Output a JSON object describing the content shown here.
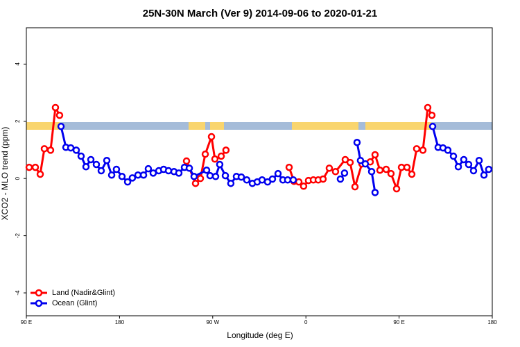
{
  "chart_data": {
    "type": "line",
    "title": "25N-30N March (Ver 9)   2014-09-06 to 2020-01-21",
    "x_label": "Longitude (deg E)",
    "y_label": "XCO2 - MLO trend (ppm)",
    "xlim": [
      90,
      540
    ],
    "xticks": [
      {
        "value": 90,
        "label": "90 E"
      },
      180,
      {
        "value": 270,
        "label": "90 W"
      },
      {
        "value": 360,
        "label": "0"
      },
      {
        "value": 450,
        "label": "90 E"
      },
      180
    ],
    "ylim": [
      -4.8,
      5.27
    ],
    "yticks": [
      -4,
      -2,
      0,
      2,
      4
    ],
    "legend": "bottom-left",
    "series": [
      {
        "name": "Land (Nadir&Glint)",
        "color": "#ff0000",
        "x": [
          92.7,
          98.7,
          103.4,
          107.4,
          113.4,
          118.1,
          122.1,
          null,
          244.7,
          253.4,
          258.1,
          262.8,
          268.8,
          272.1,
          278.2,
          282.8,
          null,
          343.8,
          348.5,
          353.2,
          357.8,
          362.5,
          367.2,
          371.9,
          376.6,
          382.6,
          388.6,
          398.0,
          402.7,
          407.4,
          414.1,
          422.1,
          426.8,
          431.5,
          437.5,
          442.2,
          447.6,
          452.3,
          457.6,
          462.3,
          467.0,
          473.0,
          477.7,
          481.7
        ],
        "values": [
          0.39,
          0.39,
          0.15,
          1.04,
          0.99,
          2.48,
          2.21,
          null,
          0.61,
          -0.17,
          0,
          0.85,
          1.46,
          0.68,
          0.78,
          0.99,
          null,
          0.39,
          -0.1,
          -0.12,
          -0.27,
          -0.07,
          -0.05,
          -0.05,
          -0.02,
          0.36,
          0.24,
          0.66,
          0.56,
          -0.29,
          0.51,
          0.58,
          0.83,
          0.29,
          0.32,
          0.17,
          -0.36,
          0.39,
          0.39,
          0.15,
          1.04,
          0.99,
          2.48,
          2.21
        ]
      },
      {
        "name": "Ocean (Glint)",
        "color": "#0000ee",
        "x": [
          123.5,
          128.2,
          132.9,
          138.2,
          142.9,
          147.6,
          152.3,
          157.6,
          162.3,
          167.7,
          172.4,
          177.0,
          182.4,
          187.8,
          192.4,
          197.8,
          203.2,
          207.8,
          212.5,
          217.9,
          222.6,
          227.3,
          232.6,
          237.3,
          242.7,
          247.4,
          252.0,
          264.1,
          267.4,
          272.8,
          276.8,
          282.2,
          287.5,
          292.9,
          297.6,
          302.9,
          308.3,
          313.0,
          317.7,
          323.0,
          327.7,
          333.1,
          337.8,
          342.4,
          347.8,
          null,
          393.3,
          397.3,
          null,
          409.4,
          412.7,
          417.4,
          423.5,
          426.8,
          null,
          482.4,
          487.7,
          492.4,
          497.1,
          502.5,
          507.2,
          512.5,
          517.2,
          521.9,
          527.3,
          532.0,
          536.6
        ],
        "values": [
          1.82,
          1.09,
          1.07,
          0.99,
          0.78,
          0.41,
          0.66,
          0.49,
          0.27,
          0.63,
          0.12,
          0.32,
          0.07,
          -0.12,
          0.02,
          0.12,
          0.12,
          0.34,
          0.19,
          0.27,
          0.32,
          0.27,
          0.24,
          0.19,
          0.39,
          0.36,
          0.07,
          0.29,
          0.1,
          0.07,
          0.49,
          0.1,
          -0.17,
          0.07,
          0.05,
          -0.05,
          -0.17,
          -0.12,
          -0.05,
          -0.12,
          -0.02,
          0.17,
          -0.05,
          -0.05,
          -0.05,
          null,
          -0.02,
          0.19,
          null,
          1.26,
          0.63,
          0.51,
          0.24,
          -0.49,
          null,
          1.82,
          1.09,
          1.07,
          0.99,
          0.78,
          0.41,
          0.66,
          0.49,
          0.27,
          0.63,
          0.12,
          0.32
        ]
      }
    ]
  }
}
